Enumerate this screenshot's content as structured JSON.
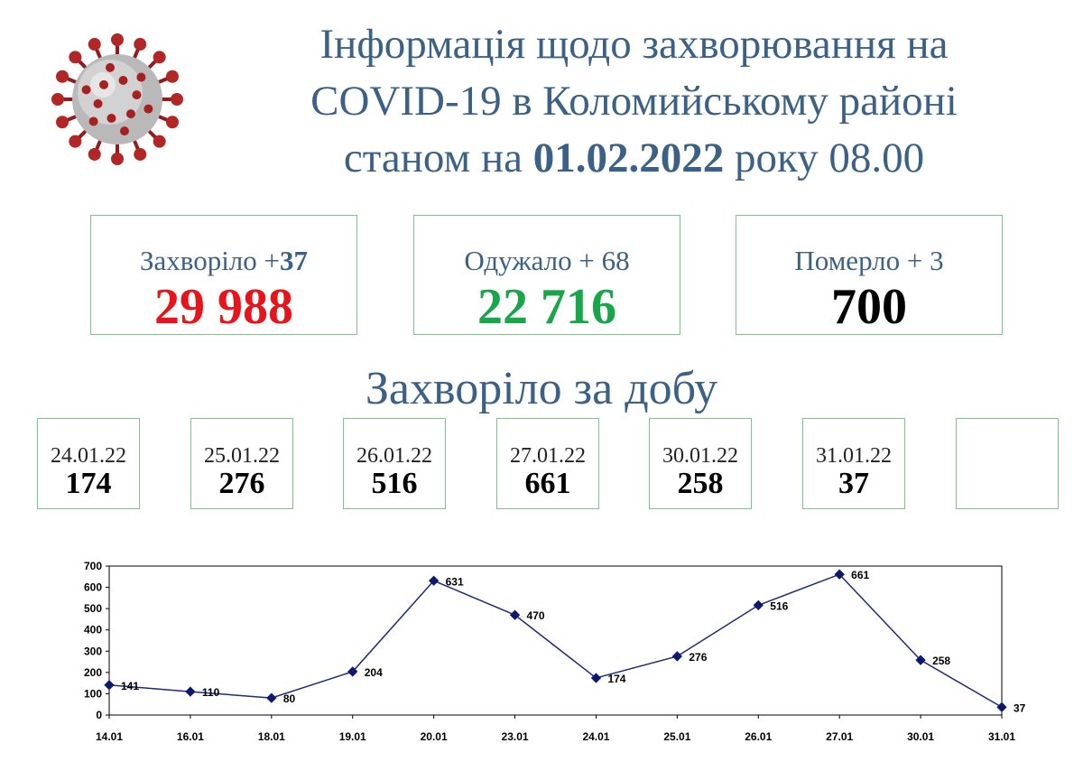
{
  "header": {
    "title_line1": "Інформація щодо захворювання на",
    "title_line2": "COVID-19 в Коломийському районі",
    "title_line3_prefix": "станом на ",
    "title_date": "01.02.2022",
    "title_line3_suffix": " року 08.00"
  },
  "stats": [
    {
      "label": "Захворіло +",
      "delta": "37",
      "value": "29 988",
      "color": "#e8141b"
    },
    {
      "label": "Одужало + 68",
      "delta": "",
      "value": "22 716",
      "color": "#1aa54b"
    },
    {
      "label": "Померло + 3",
      "delta": "",
      "value": "700",
      "color": "#000000"
    }
  ],
  "daily_title": "Захворіло за добу",
  "daily": [
    {
      "date": "24.01.22",
      "value": "174"
    },
    {
      "date": "25.01.22",
      "value": "276"
    },
    {
      "date": "26.01.22",
      "value": "516"
    },
    {
      "date": "27.01.22",
      "value": "661"
    },
    {
      "date": "30.01.22",
      "value": "258"
    },
    {
      "date": "31.01.22",
      "value": "37"
    },
    {
      "date": "",
      "value": ""
    }
  ],
  "colors": {
    "title": "#3b6186",
    "box_border": "#7cc48a",
    "line": "#1f2a7a",
    "marker": "#0b1a6e"
  },
  "chart_data": {
    "type": "line",
    "categories": [
      "14.01",
      "16.01",
      "18.01",
      "19.01",
      "20.01",
      "23.01",
      "24.01",
      "25.01",
      "26.01",
      "27.01",
      "30.01",
      "31.01"
    ],
    "series": [
      {
        "values": [
          141,
          110,
          80,
          204,
          631,
          470,
          174,
          276,
          516,
          661,
          258,
          37
        ]
      }
    ],
    "ylim": [
      0,
      700
    ],
    "yticks": [
      0,
      100,
      200,
      300,
      400,
      500,
      600,
      700
    ],
    "grid": false,
    "data_labels": true
  }
}
